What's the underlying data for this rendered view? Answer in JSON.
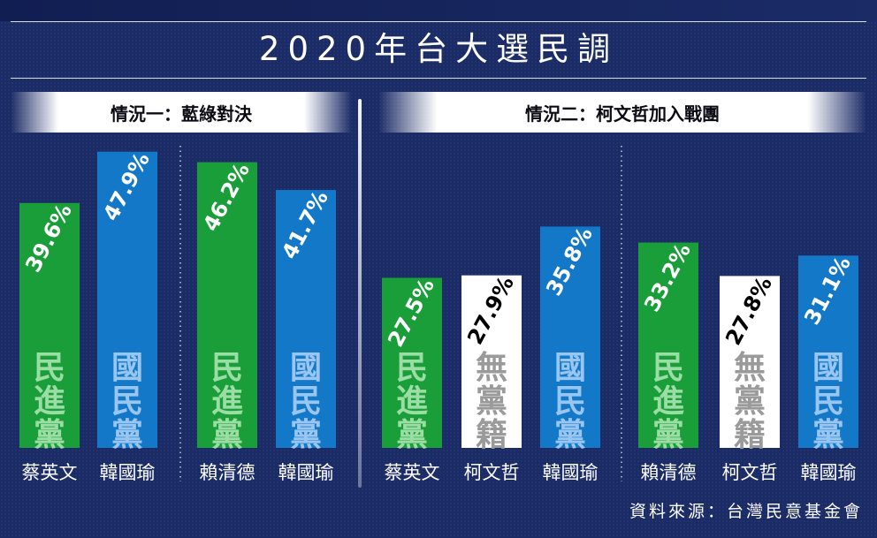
{
  "title": "2020年台大選民調",
  "source": "資料來源：台灣民意基金會",
  "colors": {
    "dpp": "#1a9e3a",
    "kmt": "#1478c9",
    "independent": "#ffffff",
    "background": "#1b2b66"
  },
  "chart_data": [
    {
      "type": "bar",
      "title": "情況一：藍綠對決",
      "ylim": [
        0,
        50
      ],
      "groups": [
        {
          "categories": [
            "蔡英文",
            "韓國瑜"
          ],
          "values": [
            39.6,
            47.9
          ],
          "labels": [
            "39.6%",
            "47.9%"
          ],
          "party_labels": [
            "民進黨",
            "國民黨"
          ],
          "parties": [
            "dpp",
            "kmt"
          ]
        },
        {
          "categories": [
            "賴清德",
            "韓國瑜"
          ],
          "values": [
            46.2,
            41.7
          ],
          "labels": [
            "46.2%",
            "41.7%"
          ],
          "party_labels": [
            "民進黨",
            "國民黨"
          ],
          "parties": [
            "dpp",
            "kmt"
          ]
        }
      ]
    },
    {
      "type": "bar",
      "title": "情況二：柯文哲加入戰團",
      "ylim": [
        0,
        50
      ],
      "groups": [
        {
          "categories": [
            "蔡英文",
            "柯文哲",
            "韓國瑜"
          ],
          "values": [
            27.5,
            27.9,
            35.8
          ],
          "labels": [
            "27.5%",
            "27.9%",
            "35.8%"
          ],
          "party_labels": [
            "民進黨",
            "無黨籍",
            "國民黨"
          ],
          "parties": [
            "dpp",
            "independent",
            "kmt"
          ]
        },
        {
          "categories": [
            "賴清德",
            "柯文哲",
            "韓國瑜"
          ],
          "values": [
            33.2,
            27.8,
            31.1
          ],
          "labels": [
            "33.2%",
            "27.8%",
            "31.1%"
          ],
          "party_labels": [
            "民進黨",
            "無黨籍",
            "國民黨"
          ],
          "parties": [
            "dpp",
            "independent",
            "kmt"
          ]
        }
      ]
    }
  ]
}
